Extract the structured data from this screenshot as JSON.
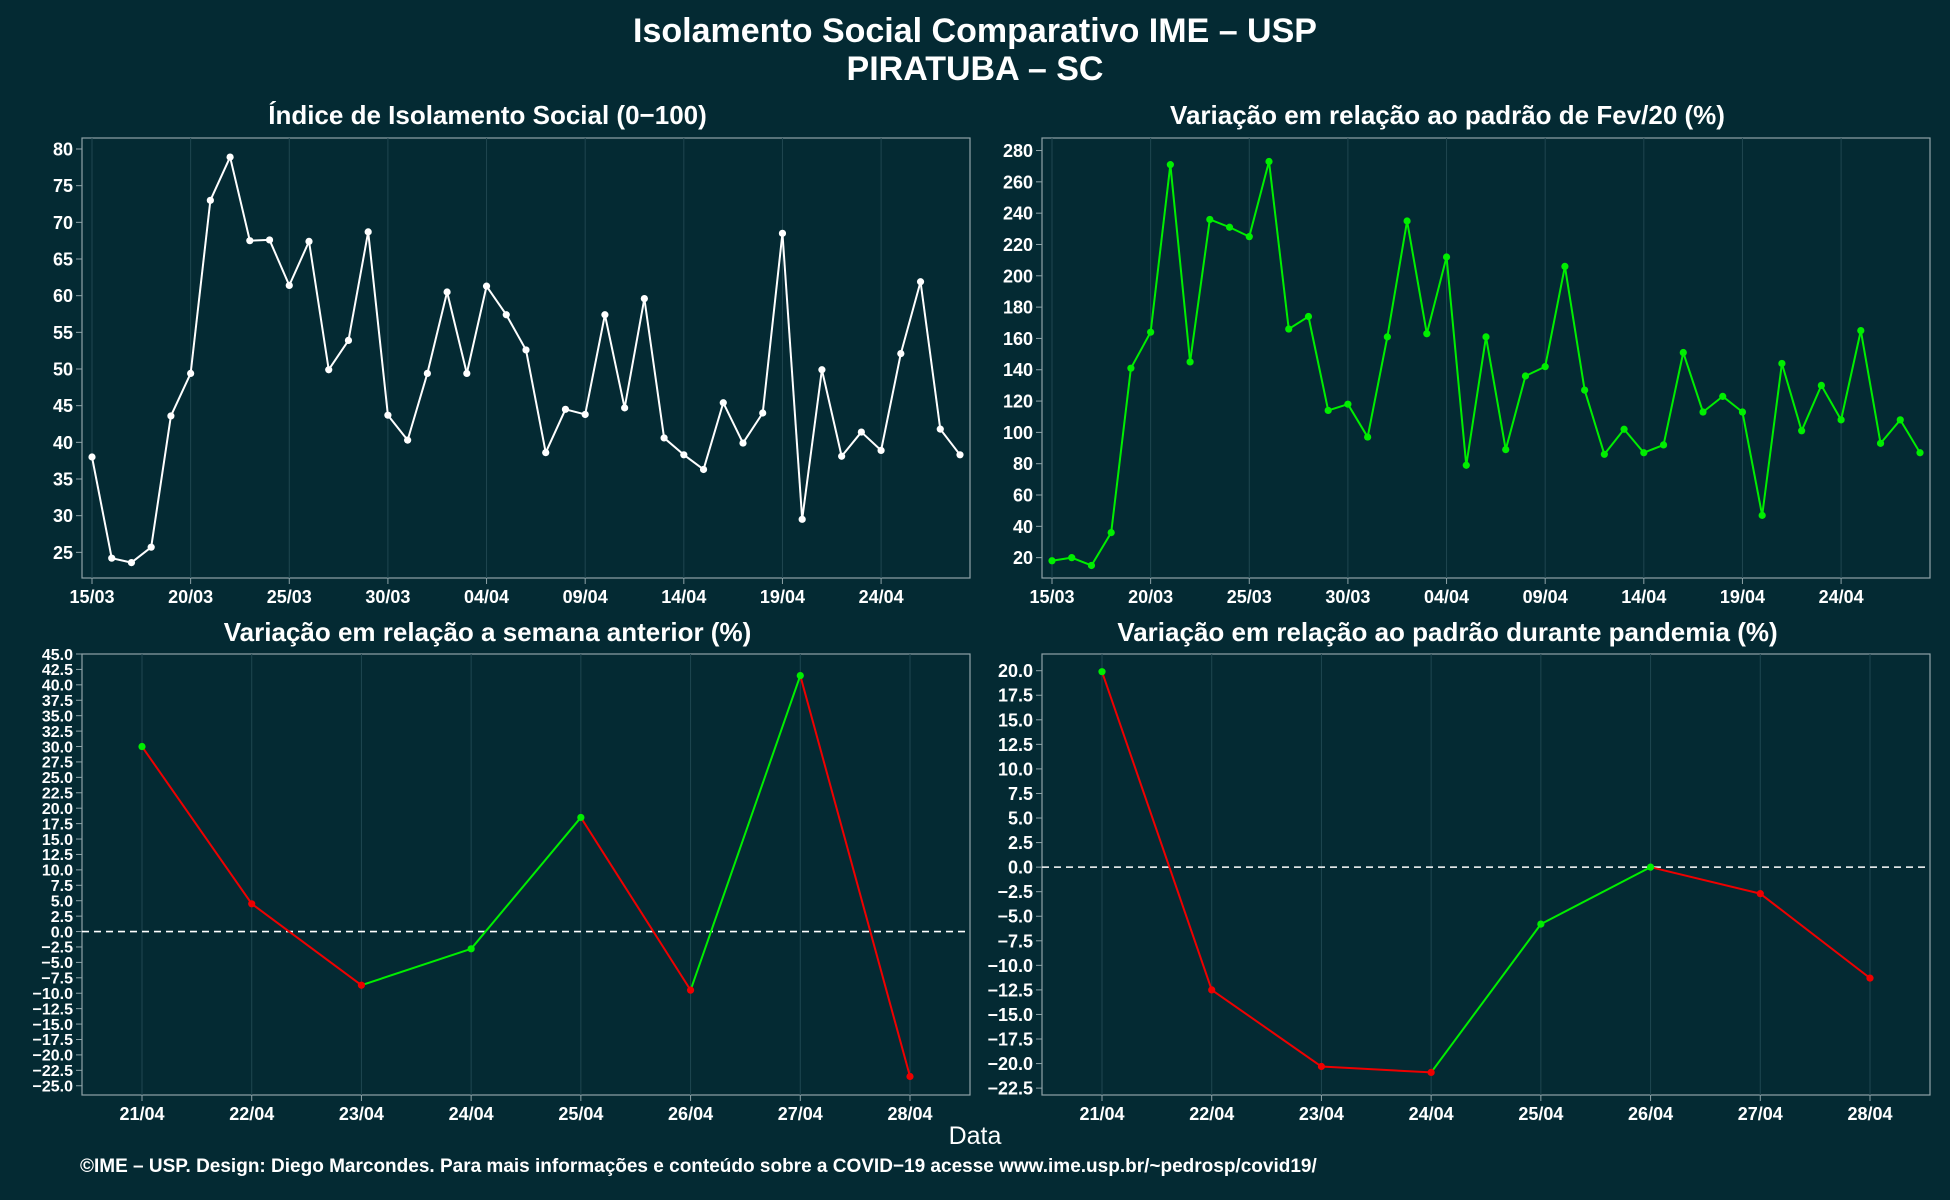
{
  "header": {
    "title_line1": "Isolamento Social Comparativo IME – USP",
    "title_line2": "PIRATUBA – SC"
  },
  "xlabel": "Data",
  "footer": "©IME – USP. Design: Diego Marcondes. Para mais informações e conteúdo sobre a COVID−19 acesse www.ime.usp.br/~pedrosp/covid19/",
  "colors": {
    "background": "#042a33",
    "white_line": "#ffffff",
    "green": "#00ee00",
    "red": "#ee0000",
    "grid": "#1f4650",
    "axis": "#8fa3a8"
  },
  "chart_data": [
    {
      "id": "isolation-index",
      "type": "line",
      "title": "Índice de Isolamento Social (0−100)",
      "color": "white",
      "x_start": "2020-03-15",
      "x_ticks": [
        "15/03",
        "20/03",
        "25/03",
        "30/03",
        "04/04",
        "09/04",
        "14/04",
        "19/04",
        "24/04"
      ],
      "y_ticks": [
        "25",
        "30",
        "35",
        "40",
        "45",
        "50",
        "55",
        "60",
        "65",
        "70",
        "75",
        "80"
      ],
      "ylim": [
        21.5,
        81.5
      ],
      "values": [
        38.0,
        24.2,
        23.6,
        25.7,
        43.6,
        49.4,
        73.0,
        78.9,
        67.5,
        67.6,
        61.4,
        67.4,
        49.9,
        53.9,
        68.7,
        43.7,
        40.3,
        49.4,
        60.5,
        49.4,
        61.3,
        57.4,
        52.6,
        38.6,
        44.5,
        43.8,
        57.4,
        44.7,
        59.6,
        40.6,
        38.3,
        36.3,
        45.4,
        39.9,
        44.0,
        68.5,
        29.5,
        49.9,
        38.1,
        41.4,
        38.9,
        52.1,
        61.9,
        41.8,
        38.3
      ]
    },
    {
      "id": "variation-feb",
      "type": "line",
      "title": "Variação em relação ao padrão de Fev/20 (%)",
      "color": "green",
      "x_start": "2020-03-15",
      "x_ticks": [
        "15/03",
        "20/03",
        "25/03",
        "30/03",
        "04/04",
        "09/04",
        "14/04",
        "19/04",
        "24/04"
      ],
      "y_ticks": [
        "20",
        "40",
        "60",
        "80",
        "100",
        "120",
        "140",
        "160",
        "180",
        "200",
        "220",
        "240",
        "260",
        "280"
      ],
      "ylim": [
        7,
        288
      ],
      "values": [
        18,
        20,
        15,
        36,
        141,
        164,
        271,
        145,
        236,
        231,
        225,
        273,
        166,
        174,
        114,
        118,
        97,
        161,
        235,
        163,
        212,
        79,
        161,
        89,
        136,
        142,
        206,
        127,
        86,
        102,
        87,
        92,
        151,
        113,
        123,
        113,
        47,
        144,
        101,
        130,
        108,
        165,
        93,
        108,
        87
      ]
    },
    {
      "id": "variation-week",
      "type": "line",
      "title": "Variação em relação a semana anterior (%)",
      "color_rule": "segment green when rising, red when falling",
      "categories": [
        "21/04",
        "22/04",
        "23/04",
        "24/04",
        "25/04",
        "26/04",
        "27/04",
        "28/04"
      ],
      "y_ticks": [
        "45.0",
        "42.5",
        "40.0",
        "37.5",
        "35.0",
        "32.5",
        "30.0",
        "27.5",
        "25.0",
        "22.5",
        "20.0",
        "17.5",
        "15.0",
        "12.5",
        "10.0",
        "7.5",
        "5.0",
        "2.5",
        "0.0",
        "−2.5",
        "−5.0",
        "−7.5",
        "−10.0",
        "−12.5",
        "−15.0",
        "−17.5",
        "−20.0",
        "−22.5",
        "−25.0"
      ],
      "ylim": [
        -26.5,
        45.0
      ],
      "reference_line": 0,
      "values": [
        30.0,
        4.5,
        -8.7,
        -2.8,
        18.5,
        -9.5,
        41.5,
        -23.5
      ]
    },
    {
      "id": "variation-pandemic",
      "type": "line",
      "title": "Variação em relação ao padrão durante pandemia (%)",
      "color_rule": "segment green when rising, red when falling",
      "categories": [
        "21/04",
        "22/04",
        "23/04",
        "24/04",
        "25/04",
        "26/04",
        "27/04",
        "28/04"
      ],
      "y_ticks": [
        "20.0",
        "17.5",
        "15.0",
        "12.5",
        "10.0",
        "7.5",
        "5.0",
        "2.5",
        "0.0",
        "−2.5",
        "−5.0",
        "−7.5",
        "−10.0",
        "−12.5",
        "−15.0",
        "−17.5",
        "−20.0",
        "−22.5"
      ],
      "ylim": [
        -23.2,
        21.7
      ],
      "reference_line": 0,
      "values": [
        19.9,
        -12.5,
        -20.3,
        -20.9,
        -5.8,
        0.0,
        -2.7,
        -11.3
      ]
    }
  ]
}
